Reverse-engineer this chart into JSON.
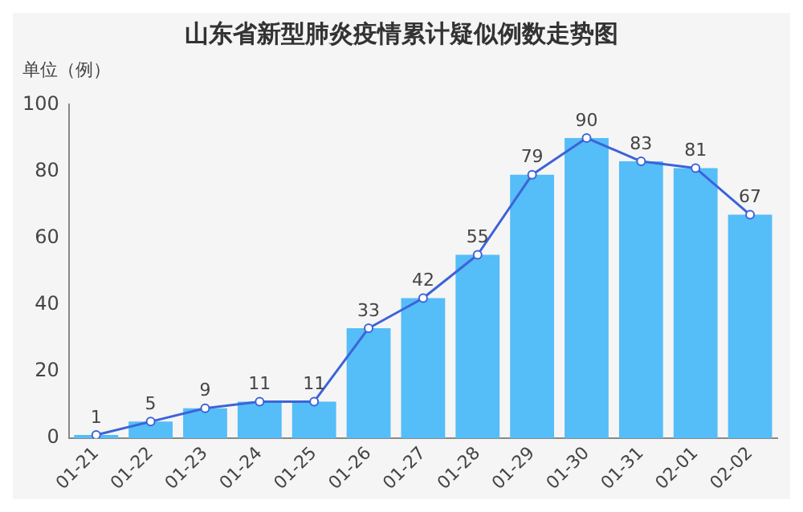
{
  "chart_data": {
    "type": "bar",
    "title": "山东省新型肺炎疫情累计疑似例数走势图",
    "ylabel": "单位（例）",
    "categories": [
      "01-21",
      "01-22",
      "01-23",
      "01-24",
      "01-25",
      "01-26",
      "01-27",
      "01-28",
      "01-29",
      "01-30",
      "01-31",
      "02-01",
      "02-02"
    ],
    "series": [
      {
        "color": "#55bdf7",
        "values": [
          1,
          5,
          9,
          11,
          11,
          33,
          42,
          55,
          79,
          90,
          83,
          81,
          67
        ]
      },
      {
        "type": "line",
        "color": "#3d63d8",
        "marker": "circle",
        "data_labels": true,
        "values": [
          1,
          5,
          9,
          11,
          11,
          33,
          42,
          55,
          79,
          90,
          83,
          81,
          67
        ]
      }
    ],
    "ylim": [
      0,
      100
    ],
    "yticks": [
      0,
      20,
      40,
      60,
      80,
      100
    ],
    "grid": false,
    "legend": false
  }
}
